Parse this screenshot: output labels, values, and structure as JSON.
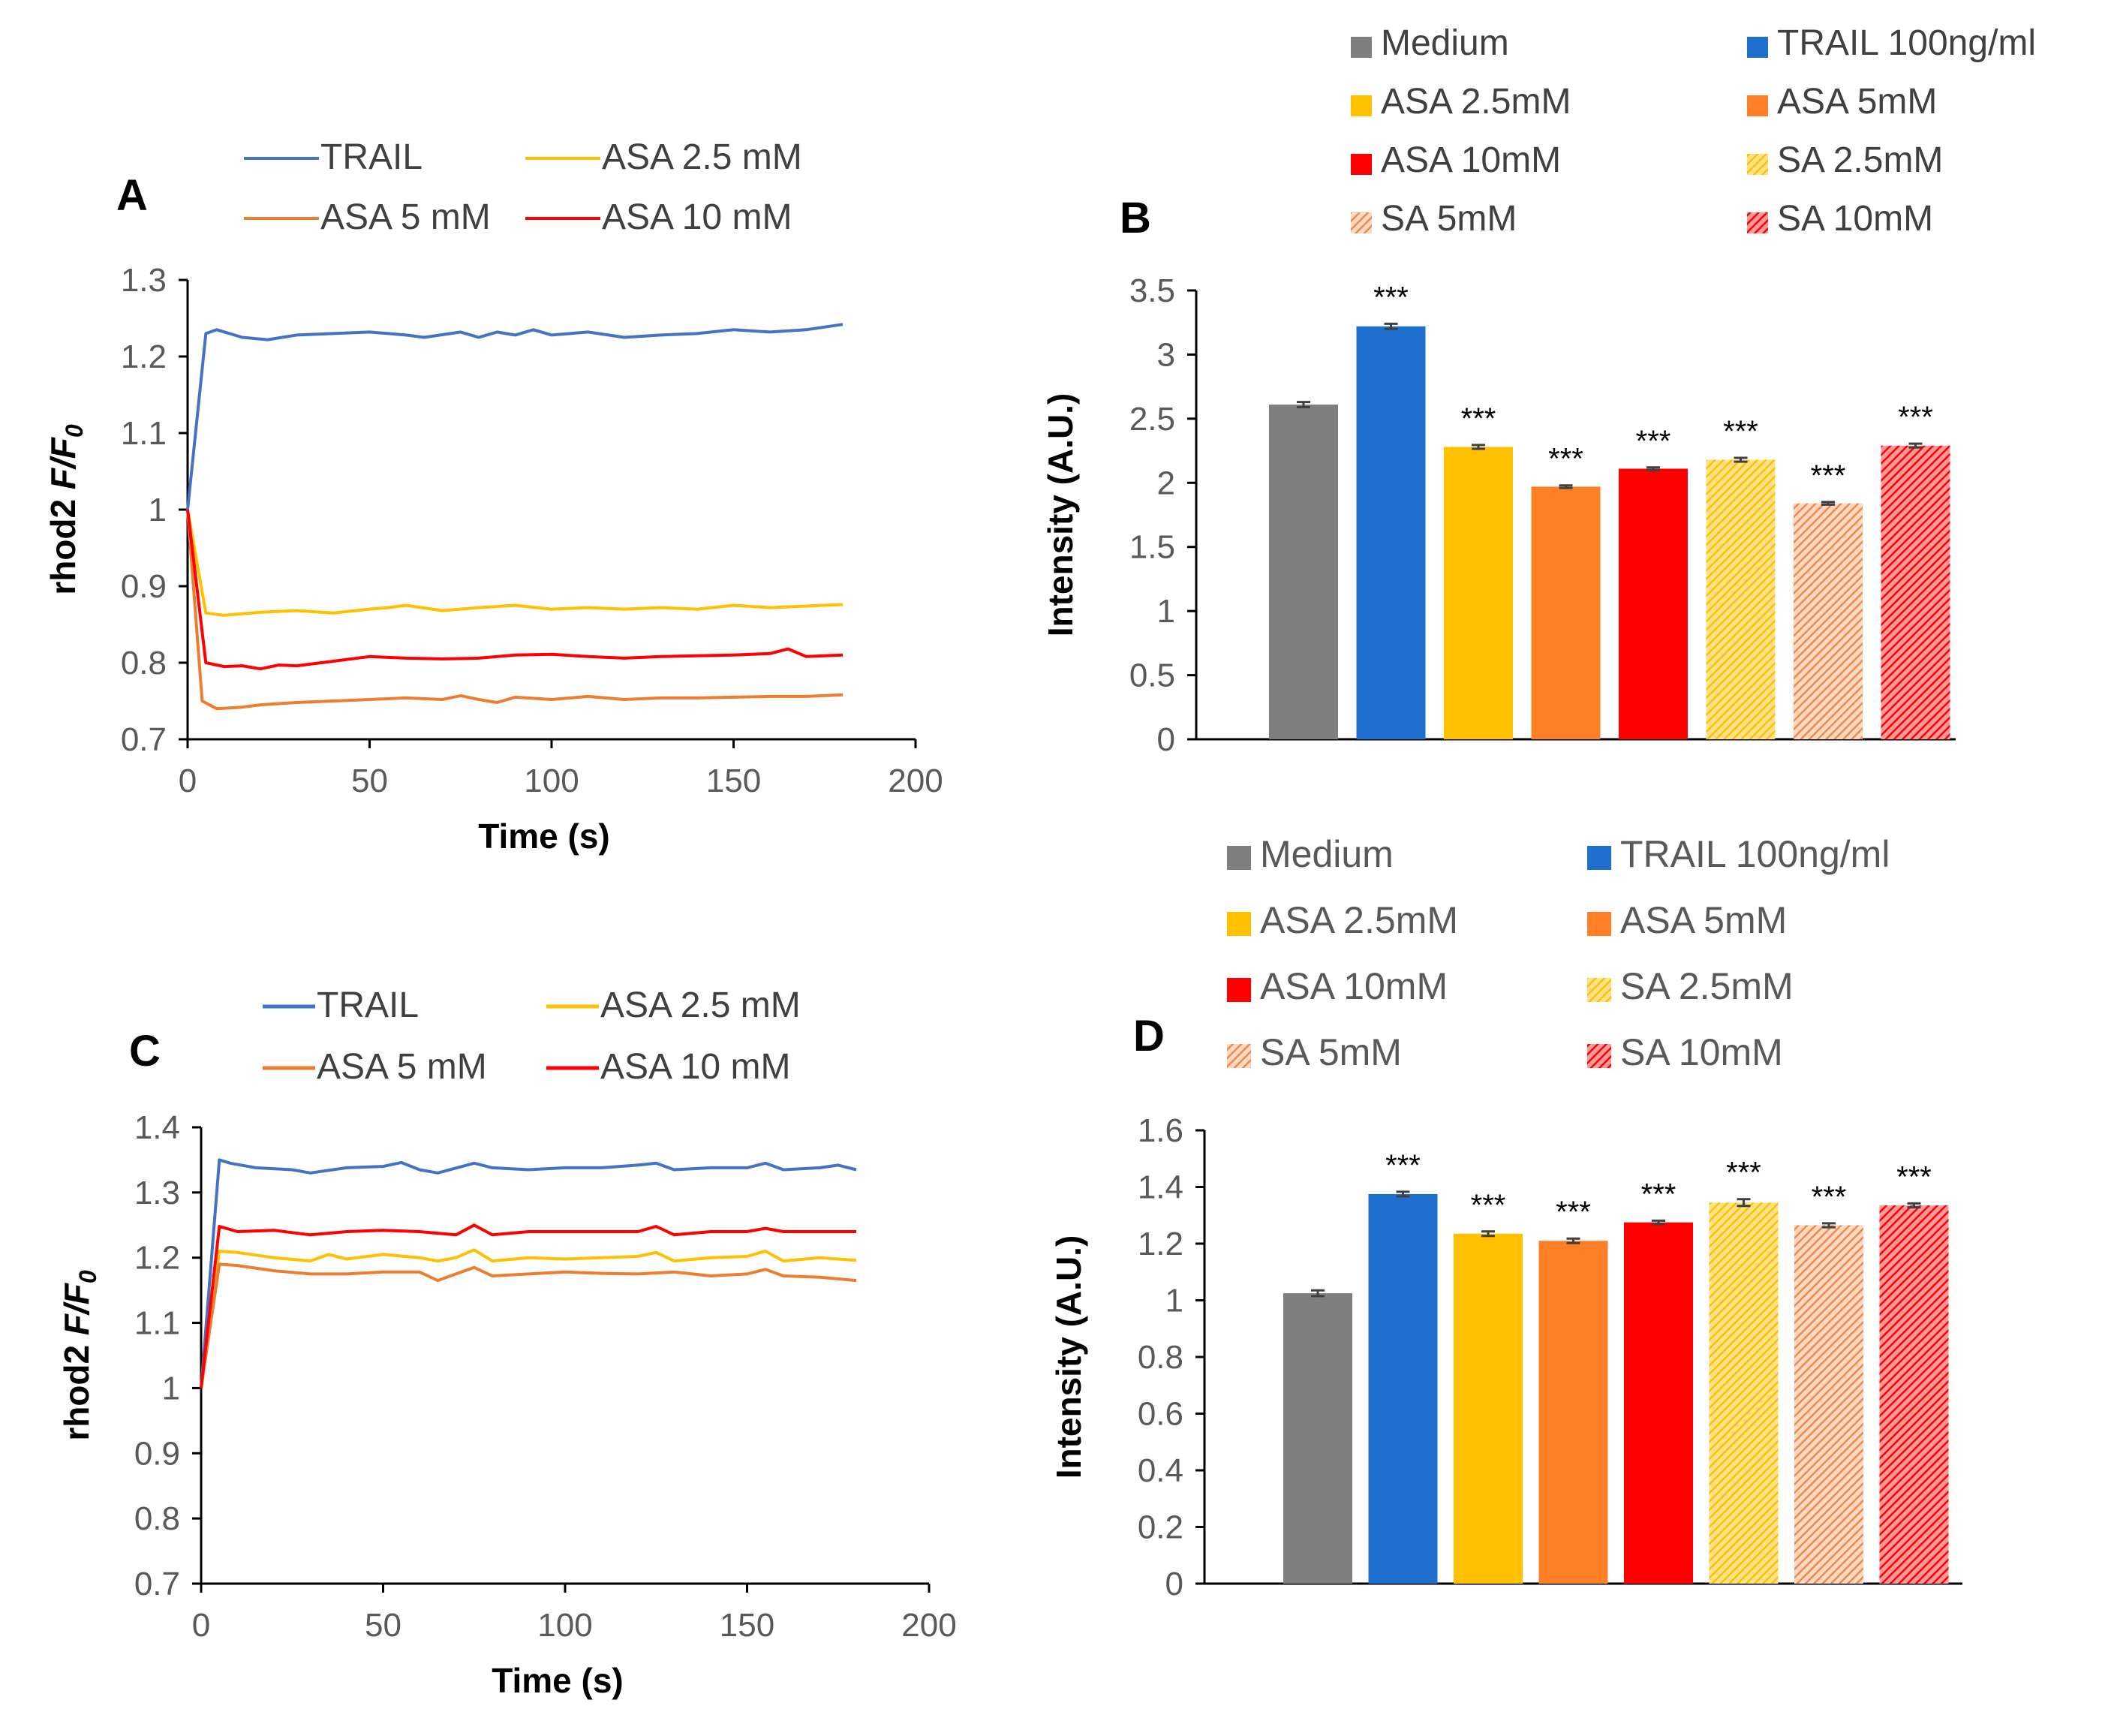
{
  "chart_data": [
    {
      "panel": "A",
      "type": "line",
      "xlabel": "Time (s)",
      "ylabel_prefix": "rhod2 ",
      "ylabel_italic": "F/F",
      "ylabel_sub": "0",
      "xlim": [
        0,
        200
      ],
      "ylim": [
        0.7,
        1.3
      ],
      "xticks": [
        0,
        50,
        100,
        150,
        200
      ],
      "yticks": [
        "0.7",
        "0.8",
        "0.9",
        "1",
        "1.1",
        "1.2",
        "1.3"
      ],
      "legend": [
        "TRAIL",
        "ASA 2.5 mM",
        "ASA 5 mM",
        "ASA 10 mM"
      ],
      "series": [
        {
          "name": "TRAIL",
          "color": "#4472C4",
          "x": [
            0,
            5,
            8,
            15,
            22,
            30,
            40,
            50,
            60,
            65,
            75,
            80,
            85,
            90,
            95,
            100,
            110,
            120,
            130,
            140,
            150,
            160,
            170,
            180
          ],
          "y": [
            1.0,
            1.23,
            1.235,
            1.225,
            1.222,
            1.228,
            1.23,
            1.232,
            1.228,
            1.225,
            1.232,
            1.225,
            1.232,
            1.228,
            1.235,
            1.228,
            1.232,
            1.225,
            1.228,
            1.23,
            1.235,
            1.232,
            1.235,
            1.242
          ]
        },
        {
          "name": "ASA 2.5 mM",
          "color": "#FFC000",
          "x": [
            0,
            5,
            10,
            20,
            30,
            40,
            50,
            55,
            60,
            70,
            80,
            90,
            100,
            110,
            120,
            130,
            140,
            150,
            160,
            170,
            180
          ],
          "y": [
            1.0,
            0.865,
            0.862,
            0.866,
            0.868,
            0.865,
            0.87,
            0.872,
            0.875,
            0.868,
            0.872,
            0.875,
            0.87,
            0.872,
            0.87,
            0.872,
            0.87,
            0.875,
            0.872,
            0.874,
            0.876
          ]
        },
        {
          "name": "ASA 5 mM",
          "color": "#ED7D31",
          "x": [
            0,
            4,
            8,
            15,
            20,
            30,
            40,
            50,
            60,
            70,
            75,
            80,
            85,
            90,
            100,
            110,
            120,
            130,
            140,
            150,
            160,
            170,
            180
          ],
          "y": [
            1.0,
            0.75,
            0.74,
            0.742,
            0.745,
            0.748,
            0.75,
            0.752,
            0.754,
            0.752,
            0.757,
            0.752,
            0.748,
            0.755,
            0.752,
            0.756,
            0.752,
            0.754,
            0.754,
            0.755,
            0.756,
            0.756,
            0.758
          ]
        },
        {
          "name": "ASA 10 mM",
          "color": "#FF0000",
          "x": [
            0,
            5,
            10,
            15,
            20,
            25,
            30,
            40,
            50,
            60,
            70,
            80,
            90,
            100,
            110,
            120,
            130,
            140,
            150,
            160,
            165,
            170,
            180
          ],
          "y": [
            1.0,
            0.8,
            0.795,
            0.796,
            0.792,
            0.797,
            0.796,
            0.802,
            0.808,
            0.806,
            0.805,
            0.806,
            0.81,
            0.811,
            0.808,
            0.806,
            0.808,
            0.809,
            0.81,
            0.812,
            0.818,
            0.808,
            0.81
          ]
        }
      ]
    },
    {
      "panel": "B",
      "type": "bar",
      "ylabel": "Intensity (A.U.)",
      "ylim": [
        0,
        3.5
      ],
      "yticks": [
        "0",
        "0.5",
        "1",
        "1.5",
        "2",
        "2.5",
        "3",
        "3.5"
      ],
      "categories": [
        "Medium",
        "TRAIL 100ng/ml",
        "ASA 2.5mM",
        "ASA 5mM",
        "ASA 10mM",
        "SA 2.5mM",
        "SA 5mM",
        "SA 10mM"
      ],
      "values": [
        2.61,
        3.22,
        2.28,
        1.97,
        2.11,
        2.18,
        1.84,
        2.29
      ],
      "errors": [
        0.02,
        0.02,
        0.015,
        0.01,
        0.01,
        0.015,
        0.01,
        0.015
      ],
      "significance": [
        "",
        "***",
        "***",
        "***",
        "***",
        "***",
        "***",
        "***"
      ]
    },
    {
      "panel": "C",
      "type": "line",
      "xlabel": "Time (s)",
      "ylabel_prefix": "rhod2 ",
      "ylabel_italic": "F/F",
      "ylabel_sub": "0",
      "xlim": [
        0,
        200
      ],
      "ylim": [
        0.7,
        1.4
      ],
      "xticks": [
        0,
        50,
        100,
        150,
        200
      ],
      "yticks": [
        "0.7",
        "0.8",
        "0.9",
        "1",
        "1.1",
        "1.2",
        "1.3",
        "1.4"
      ],
      "legend": [
        "TRAIL",
        "ASA 2.5 mM",
        "ASA 5 mM",
        "ASA 10 mM"
      ],
      "series": [
        {
          "name": "TRAIL",
          "color": "#4472C4",
          "x": [
            0,
            5,
            8,
            15,
            25,
            30,
            40,
            50,
            55,
            60,
            65,
            75,
            80,
            90,
            100,
            110,
            120,
            125,
            130,
            140,
            150,
            155,
            160,
            170,
            175,
            180
          ],
          "y": [
            1.0,
            1.35,
            1.345,
            1.338,
            1.335,
            1.33,
            1.338,
            1.34,
            1.346,
            1.335,
            1.33,
            1.345,
            1.338,
            1.335,
            1.338,
            1.338,
            1.342,
            1.345,
            1.335,
            1.338,
            1.338,
            1.345,
            1.335,
            1.338,
            1.342,
            1.335
          ]
        },
        {
          "name": "ASA 2.5 mM",
          "color": "#FFC000",
          "x": [
            0,
            5,
            10,
            20,
            30,
            35,
            40,
            50,
            60,
            65,
            70,
            75,
            80,
            90,
            100,
            110,
            120,
            125,
            130,
            140,
            150,
            155,
            160,
            170,
            180
          ],
          "y": [
            1.0,
            1.21,
            1.208,
            1.2,
            1.195,
            1.205,
            1.198,
            1.205,
            1.2,
            1.195,
            1.2,
            1.212,
            1.195,
            1.2,
            1.198,
            1.2,
            1.202,
            1.208,
            1.195,
            1.2,
            1.202,
            1.21,
            1.195,
            1.2,
            1.196
          ]
        },
        {
          "name": "ASA 5 mM",
          "color": "#ED7D31",
          "x": [
            0,
            5,
            10,
            20,
            30,
            40,
            50,
            60,
            65,
            70,
            75,
            80,
            90,
            100,
            110,
            120,
            130,
            140,
            150,
            155,
            160,
            170,
            180
          ],
          "y": [
            1.0,
            1.19,
            1.188,
            1.18,
            1.175,
            1.175,
            1.178,
            1.178,
            1.165,
            1.175,
            1.185,
            1.172,
            1.175,
            1.178,
            1.176,
            1.175,
            1.178,
            1.172,
            1.175,
            1.182,
            1.172,
            1.17,
            1.165
          ]
        },
        {
          "name": "ASA 10 mM",
          "color": "#FF0000",
          "x": [
            0,
            5,
            10,
            20,
            30,
            40,
            50,
            60,
            70,
            75,
            80,
            90,
            100,
            110,
            120,
            125,
            130,
            140,
            150,
            155,
            160,
            170,
            180
          ],
          "y": [
            1.0,
            1.248,
            1.24,
            1.242,
            1.235,
            1.24,
            1.242,
            1.24,
            1.235,
            1.25,
            1.235,
            1.24,
            1.24,
            1.24,
            1.24,
            1.248,
            1.235,
            1.24,
            1.24,
            1.245,
            1.24,
            1.24,
            1.24
          ]
        }
      ]
    },
    {
      "panel": "D",
      "type": "bar",
      "ylabel": "Intensity (A.U.)",
      "ylim": [
        0,
        1.6
      ],
      "yticks": [
        "0",
        "0.2",
        "0.4",
        "0.6",
        "0.8",
        "1",
        "1.2",
        "1.4",
        "1.6"
      ],
      "categories": [
        "Medium",
        "TRAIL 100ng/ml",
        "ASA 2.5mM",
        "ASA 5mM",
        "ASA 10mM",
        "SA 2.5mM",
        "SA 5mM",
        "SA 10mM"
      ],
      "values": [
        1.025,
        1.375,
        1.235,
        1.21,
        1.275,
        1.345,
        1.265,
        1.335
      ],
      "errors": [
        0.01,
        0.008,
        0.008,
        0.008,
        0.006,
        0.012,
        0.007,
        0.007
      ],
      "significance": [
        "",
        "***",
        "***",
        "***",
        "***",
        "***",
        "***",
        "***"
      ]
    }
  ],
  "legend_styles": [
    {
      "name": "Medium",
      "color": "#7F7F7F",
      "fill": "solid"
    },
    {
      "name": "TRAIL 100ng/ml",
      "color": "#1F6FCF",
      "fill": "solid"
    },
    {
      "name": "ASA 2.5mM",
      "color": "#FFC000",
      "fill": "solid"
    },
    {
      "name": "ASA 5mM",
      "color": "#FF7F27",
      "fill": "solid"
    },
    {
      "name": "ASA 10mM",
      "color": "#FF0000",
      "fill": "solid"
    },
    {
      "name": "SA 2.5mM",
      "color": "#FFC000",
      "fill": "hatch"
    },
    {
      "name": "SA 5mM",
      "color": "#F4A070",
      "fill": "hatch"
    },
    {
      "name": "SA 10mM",
      "color": "#FF0000",
      "fill": "hatch"
    }
  ]
}
